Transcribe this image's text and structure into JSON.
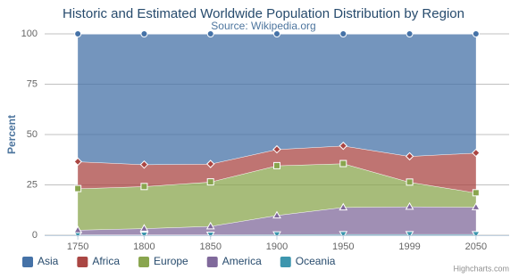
{
  "chart_data": {
    "type": "area",
    "stacking": "percent",
    "title": "Historic and Estimated Worldwide Population Distribution by Region",
    "subtitle": "Source: Wikipedia.org",
    "y_label": "Percent",
    "credits": "Highcharts.com",
    "categories": [
      "1750",
      "1800",
      "1850",
      "1900",
      "1950",
      "1999",
      "2050"
    ],
    "series": [
      {
        "name": "Asia",
        "color": "#4572A7",
        "marker": "circle",
        "values": [
          63.5,
          64.9,
          64.6,
          57.4,
          55.6,
          60.8,
          59.1
        ]
      },
      {
        "name": "Africa",
        "color": "#AA4643",
        "marker": "diamond",
        "values": [
          13.4,
          10.9,
          8.9,
          8.1,
          8.8,
          12.8,
          19.8
        ]
      },
      {
        "name": "Europe",
        "color": "#89A54E",
        "marker": "square",
        "values": [
          20.6,
          20.8,
          22.0,
          24.7,
          21.7,
          12.2,
          7.1
        ]
      },
      {
        "name": "America",
        "color": "#80699B",
        "marker": "triangle",
        "values": [
          2.3,
          3.2,
          4.3,
          9.5,
          13.4,
          13.7,
          13.5
        ]
      },
      {
        "name": "Oceania",
        "color": "#3D96AE",
        "marker": "triangle-down",
        "values": [
          0.3,
          0.2,
          0.2,
          0.4,
          0.5,
          0.5,
          0.5
        ]
      }
    ],
    "ylim": [
      0,
      100
    ],
    "yticks": [
      0,
      25,
      50,
      75,
      100
    ],
    "grid": true,
    "legend": "bottom-left"
  }
}
